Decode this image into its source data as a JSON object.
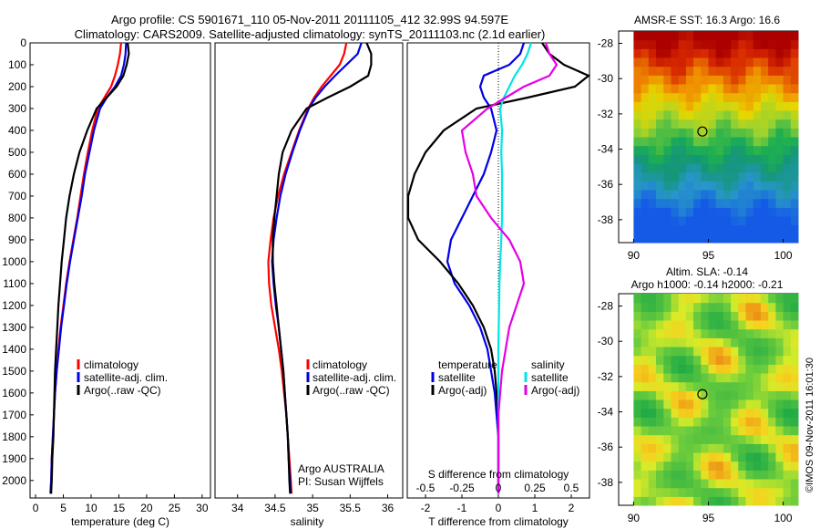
{
  "header": {
    "title_line1": "Argo profile: CS 5901671_110 05-Nov-2011 20111105_412 32.99S 94.597E",
    "title_line2": "Climatology: CARS2009. Satellite-adjusted climatology: synTS_20111103.nc (2.1d earlier)"
  },
  "colors": {
    "climatology": "#ff0000",
    "satellite": "#0000e6",
    "argo": "#000000",
    "satellite_salinity": "#00e5e5",
    "argo_salinity": "#e600e6"
  },
  "chart_data": [
    {
      "type": "line",
      "xlabel": "temperature (deg C)",
      "ylabel": "",
      "xlim": [
        -1,
        31.5
      ],
      "ylim": [
        2080,
        0
      ],
      "xticks": [
        0,
        5,
        10,
        15,
        20,
        25,
        30
      ],
      "yticks": [
        0,
        100,
        200,
        300,
        400,
        500,
        600,
        700,
        800,
        900,
        1000,
        1100,
        1200,
        1300,
        1400,
        1500,
        1600,
        1700,
        1800,
        1900,
        2000
      ],
      "legend": [
        "climatology",
        "satellite-adj. clim.",
        "Argo(..raw -QC)"
      ],
      "legend_position": "lower-center",
      "series": [
        {
          "name": "climatology",
          "color": "#ff0000",
          "x": [
            15.4,
            15.2,
            14.8,
            14.3,
            13.6,
            12.4,
            11.2,
            10.2,
            9.4,
            8.7,
            8.1,
            7.5,
            6.8,
            6.1,
            5.5,
            5.0,
            4.5,
            4.1,
            3.8,
            3.5,
            3.3,
            3.1,
            2.9,
            2.8,
            2.7,
            2.7
          ],
          "y": [
            0,
            50,
            100,
            150,
            200,
            250,
            300,
            400,
            500,
            600,
            700,
            800,
            900,
            1000,
            1100,
            1200,
            1300,
            1400,
            1500,
            1600,
            1700,
            1800,
            1900,
            2000,
            2050,
            2060
          ]
        },
        {
          "name": "satellite-adj. clim.",
          "color": "#0000e6",
          "x": [
            16.3,
            16.2,
            15.9,
            15.4,
            14.3,
            12.8,
            11.6,
            10.5,
            9.7,
            8.9,
            8.3,
            7.6,
            6.9,
            6.2,
            5.6,
            5.1,
            4.6,
            4.2,
            3.8,
            3.5,
            3.3,
            3.1,
            2.9,
            2.8,
            2.7,
            2.7
          ],
          "y": [
            0,
            50,
            100,
            150,
            200,
            250,
            300,
            400,
            500,
            600,
            700,
            800,
            900,
            1000,
            1100,
            1200,
            1300,
            1400,
            1500,
            1600,
            1700,
            1800,
            1900,
            2000,
            2050,
            2060
          ]
        },
        {
          "name": "Argo(..raw -QC)",
          "color": "#000000",
          "x": [
            16.6,
            16.8,
            16.4,
            15.8,
            14.6,
            12.8,
            11.0,
            9.3,
            7.9,
            6.9,
            6.1,
            5.5,
            5.1,
            4.7,
            4.4,
            4.1,
            3.9,
            3.7,
            3.5,
            3.4,
            3.3,
            3.2,
            3.0,
            2.9,
            2.8,
            2.8
          ],
          "y": [
            0,
            50,
            100,
            150,
            200,
            250,
            300,
            400,
            500,
            600,
            700,
            800,
            900,
            1000,
            1100,
            1200,
            1300,
            1400,
            1500,
            1600,
            1700,
            1800,
            1900,
            2000,
            2050,
            2060
          ]
        }
      ]
    },
    {
      "type": "line",
      "xlabel": "salinity",
      "ylabel": "",
      "xlim": [
        33.7,
        36.2
      ],
      "ylim": [
        2080,
        0
      ],
      "xticks": [
        34,
        34.5,
        35,
        35.5,
        36
      ],
      "legend": [
        "climatology",
        "satellite-adj. clim.",
        "Argo(..raw -QC)"
      ],
      "legend_position": "lower-right",
      "annotations": [
        "Argo AUSTRALIA",
        "PI: Susan Wijffels"
      ],
      "series": [
        {
          "name": "climatology",
          "color": "#ff0000",
          "x": [
            35.45,
            35.42,
            35.36,
            35.24,
            35.12,
            35.02,
            34.94,
            34.82,
            34.72,
            34.62,
            34.54,
            34.48,
            34.44,
            34.41,
            34.42,
            34.45,
            34.5,
            34.55,
            34.59,
            34.62,
            34.65,
            34.67,
            34.69,
            34.71,
            34.72
          ],
          "y": [
            0,
            50,
            100,
            150,
            200,
            250,
            300,
            400,
            500,
            600,
            700,
            800,
            900,
            1000,
            1100,
            1200,
            1300,
            1400,
            1500,
            1600,
            1700,
            1800,
            1900,
            2000,
            2060
          ]
        },
        {
          "name": "satellite-adj. clim.",
          "color": "#0000e6",
          "x": [
            35.65,
            35.6,
            35.45,
            35.3,
            35.16,
            35.04,
            34.95,
            34.83,
            34.73,
            34.64,
            34.57,
            34.52,
            34.48,
            34.46,
            34.48,
            34.51,
            34.55,
            34.58,
            34.61,
            34.63,
            34.65,
            34.67,
            34.68,
            34.7,
            34.71
          ],
          "y": [
            0,
            50,
            100,
            150,
            200,
            250,
            300,
            400,
            500,
            600,
            700,
            800,
            900,
            1000,
            1100,
            1200,
            1300,
            1400,
            1500,
            1600,
            1700,
            1800,
            1900,
            2000,
            2060
          ]
        },
        {
          "name": "Argo(..raw -QC)",
          "color": "#000000",
          "x": [
            35.72,
            35.78,
            35.78,
            35.74,
            35.5,
            35.2,
            34.92,
            34.72,
            34.6,
            34.55,
            34.52,
            34.49,
            34.47,
            34.47,
            34.49,
            34.52,
            34.55,
            34.58,
            34.61,
            34.63,
            34.65,
            34.67,
            34.68,
            34.69,
            34.7
          ],
          "y": [
            0,
            50,
            100,
            150,
            200,
            250,
            300,
            400,
            500,
            600,
            700,
            800,
            900,
            1000,
            1100,
            1200,
            1300,
            1400,
            1500,
            1600,
            1700,
            1800,
            1900,
            2000,
            2060
          ]
        }
      ]
    },
    {
      "type": "line",
      "xlabel": "T difference from climatology",
      "xlabel_top": "S difference from climatology",
      "xlim": [
        -2.5,
        2.5
      ],
      "ylim": [
        2080,
        0
      ],
      "xticks": [
        -2,
        -1,
        0,
        1,
        2
      ],
      "xticks_salinity": [
        "-0.5",
        "-0.25",
        "0",
        "0.25",
        "0.5"
      ],
      "legend_temperature": {
        "title": "temperature",
        "items": [
          "satellite",
          "Argo(-adj)"
        ]
      },
      "legend_salinity": {
        "title": "salinity",
        "items": [
          "satellite",
          "Argo(-adj)"
        ]
      },
      "series": [
        {
          "name": "satellite",
          "color": "#0000e6",
          "x": [
            0.7,
            0.6,
            0.3,
            -0.4,
            -0.5,
            -0.4,
            -0.2,
            -0.05,
            -0.2,
            -0.4,
            -0.7,
            -1.0,
            -1.3,
            -1.4,
            -1.2,
            -0.8,
            -0.5,
            -0.3,
            -0.2,
            -0.1,
            -0.05,
            0,
            0,
            0,
            0
          ],
          "y": [
            0,
            50,
            100,
            150,
            200,
            250,
            300,
            400,
            500,
            600,
            700,
            800,
            900,
            1000,
            1100,
            1200,
            1300,
            1400,
            1500,
            1600,
            1700,
            1800,
            1900,
            2000,
            2060
          ]
        },
        {
          "name": "Argo(-adj)",
          "color": "#000000",
          "x": [
            1.2,
            1.4,
            1.8,
            2.5,
            2.1,
            0.8,
            -0.6,
            -1.5,
            -2.0,
            -2.3,
            -2.6,
            -2.5,
            -2.2,
            -1.6,
            -1.1,
            -0.7,
            -0.4,
            -0.2,
            -0.1,
            -0.05,
            0,
            0,
            0,
            0,
            0
          ],
          "y": [
            0,
            50,
            100,
            150,
            200,
            250,
            300,
            400,
            500,
            600,
            700,
            800,
            900,
            1000,
            1100,
            1200,
            1300,
            1400,
            1500,
            1600,
            1700,
            1800,
            1900,
            2000,
            2060
          ]
        },
        {
          "name": "satellite",
          "color": "#00e5e5",
          "x": [
            0.9,
            0.8,
            0.65,
            0.45,
            0.3,
            0.15,
            0.05,
            0.1,
            0.08,
            0.1,
            0.1,
            0.1,
            0.08,
            0.05,
            0.03,
            0.02,
            0.01,
            0,
            0,
            0,
            0,
            0,
            0,
            0,
            0
          ],
          "y": [
            0,
            50,
            100,
            150,
            200,
            250,
            300,
            400,
            500,
            600,
            700,
            800,
            900,
            1000,
            1100,
            1200,
            1300,
            1400,
            1500,
            1600,
            1700,
            1800,
            1900,
            2000,
            2060
          ]
        },
        {
          "name": "Argo(-adj)",
          "color": "#e600e6",
          "x": [
            1.3,
            1.4,
            1.6,
            1.4,
            0.7,
            0.2,
            -0.3,
            -1.0,
            -0.9,
            -0.7,
            -0.6,
            -0.2,
            0.3,
            0.6,
            0.7,
            0.5,
            0.3,
            0.2,
            0.1,
            0.05,
            0,
            0,
            0,
            0,
            0
          ],
          "y": [
            0,
            50,
            100,
            150,
            200,
            250,
            300,
            400,
            500,
            600,
            700,
            800,
            900,
            1000,
            1100,
            1200,
            1300,
            1400,
            1500,
            1600,
            1700,
            1800,
            1900,
            2000,
            2060
          ]
        }
      ]
    },
    {
      "type": "heatmap",
      "title": "AMSR-E SST: 16.3 Argo: 16.6",
      "xlim": [
        89,
        101
      ],
      "ylim": [
        -39.3,
        -27.3
      ],
      "xticks": [
        90,
        95,
        100
      ],
      "yticks": [
        -28,
        -30,
        -32,
        -34,
        -36,
        -38
      ],
      "marker": {
        "x": 94.6,
        "y": -33.0
      }
    },
    {
      "type": "heatmap",
      "title": "Altim. SLA: -0.14",
      "subtitle": "Argo h1000: -0.14 h2000: -0.21",
      "xlim": [
        89,
        101
      ],
      "ylim": [
        -39.3,
        -27.3
      ],
      "xticks": [
        90,
        95,
        100
      ],
      "yticks": [
        -28,
        -30,
        -32,
        -34,
        -36,
        -38
      ],
      "marker": {
        "x": 94.6,
        "y": -33.0
      }
    }
  ],
  "side_text": "©IMOS 09-Nov-2011 16:01:30"
}
